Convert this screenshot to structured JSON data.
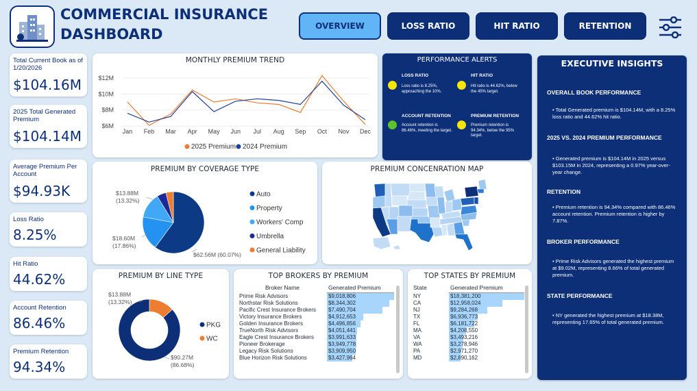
{
  "header": {
    "title_line1": "COMMERCIAL INSURANCE",
    "title_line2": "DASHBOARD",
    "tabs": [
      {
        "label": "OVERVIEW",
        "active": true
      },
      {
        "label": "LOSS RATIO",
        "active": false
      },
      {
        "label": "HIT RATIO",
        "active": false
      },
      {
        "label": "RETENTION",
        "active": false
      }
    ],
    "filter_icon": "sliders-icon"
  },
  "kpis": [
    {
      "label": "Total Current Book as of 1/20/2026",
      "value": "$104.16M"
    },
    {
      "label": "2025 Total Generated Premium",
      "value": "$104.14M"
    },
    {
      "label": "Average Premium Per Account",
      "value": "$94.93K"
    },
    {
      "label": "Loss Ratio",
      "value": "8.25%"
    },
    {
      "label": "Hit Ratio",
      "value": "44.62%"
    },
    {
      "label": "Account Retention",
      "value": "86.46%"
    },
    {
      "label": "Premium Retention",
      "value": "94.34%"
    }
  ],
  "monthly_trend": {
    "title": "MONTHLY PREMIUM TREND"
  },
  "coverage": {
    "title": "PREMIUM BY COVERAGE TYPE",
    "labels": {
      "a": "$13.88M",
      "a_pct": "(13.32%)",
      "b": "$18.60M",
      "b_pct": "(17.86%)",
      "c": "$62.56M (60.07%)"
    }
  },
  "map": {
    "title": "PREMIUM CONCENRATION MAP"
  },
  "line_type": {
    "title": "PREMIUM BY LINE TYPE",
    "labels": {
      "a": "$13.88M",
      "a_pct": "(13.32%)",
      "b": "$90.27M",
      "b_pct": "(86.68%)"
    }
  },
  "brokers": {
    "title": "TOP BROKERS BY PREMIUM",
    "col1": "Broker Name",
    "col2": "Generated Premium",
    "max": 9018806,
    "rows": [
      {
        "name": "Prime Risk Advisors",
        "value": "$9,018,806",
        "num": 9018806
      },
      {
        "name": "Northstar Risk Solutions",
        "value": "$8,344,302",
        "num": 8344302
      },
      {
        "name": "Pacific Crest Insurance Brokers",
        "value": "$7,490,704",
        "num": 7490704
      },
      {
        "name": "Victory Insurance Brokers",
        "value": "$4,912,653",
        "num": 4912653
      },
      {
        "name": "Golden Insurance Brokers",
        "value": "$4,496,856",
        "num": 4496856
      },
      {
        "name": "TrueNorth Risk Advisors",
        "value": "$4,051,441",
        "num": 4051441
      },
      {
        "name": "Eagle Crest Insurance Brokers",
        "value": "$3,991,633",
        "num": 3991633
      },
      {
        "name": "Pioneer Brokerage",
        "value": "$3,949,778",
        "num": 3949778
      },
      {
        "name": "Legacy Risk Solutions",
        "value": "$3,909,950",
        "num": 3909950
      },
      {
        "name": "Blue Horizon Risk Solutions",
        "value": "$3,427,964",
        "num": 3427964
      }
    ]
  },
  "states": {
    "title": "TOP STATES BY PREMIUM",
    "col1": "State",
    "col2": "Generated Premium",
    "max": 18381200,
    "rows": [
      {
        "name": "NY",
        "value": "$18,381,200",
        "num": 18381200
      },
      {
        "name": "CA",
        "value": "$12,958,024",
        "num": 12958024
      },
      {
        "name": "NJ",
        "value": "$9,284,268",
        "num": 9284268
      },
      {
        "name": "TX",
        "value": "$6,936,773",
        "num": 6936773
      },
      {
        "name": "FL",
        "value": "$6,181,722",
        "num": 6181722
      },
      {
        "name": "MA",
        "value": "$4,208,550",
        "num": 4208550
      },
      {
        "name": "VA",
        "value": "$3,493,216",
        "num": 3493216
      },
      {
        "name": "WA",
        "value": "$3,278,946",
        "num": 3278946
      },
      {
        "name": "PA",
        "value": "$2,971,270",
        "num": 2971270
      },
      {
        "name": "MD",
        "value": "$2,890,162",
        "num": 2890162
      }
    ]
  },
  "alerts": {
    "title": "PERFORMANCE ALERTS",
    "items": [
      {
        "title": "LOSS RATIO",
        "desc": "Loss ratio is 8.25%, approaching the 10%.",
        "status": "#f5e50a"
      },
      {
        "title": "HIT RATIO",
        "desc": "Hit ratio is 44.62%, below the 45% target.",
        "status": "#f5e50a"
      },
      {
        "title": "ACCOUNT RETENTION",
        "desc": "Account retention is 86.46%, meeting the target.",
        "status": "#5cc42a"
      },
      {
        "title": "PREMIUM RETENTION",
        "desc": "Premium retention is 94.34%, below the 95% target.",
        "status": "#f5e50a"
      }
    ]
  },
  "insights": {
    "title": "EXECUTIVE INSIGHTS",
    "sections": [
      {
        "heading": "OVERALL BOOK PERFORMANCE",
        "text": "• Total Generated premium is $104.14M, with a 8.25% loss ratio and 44.62% hit ratio."
      },
      {
        "heading": "2025 VS. 2024 PREMIUM PERFORMANCE",
        "text": "• Generated premium is $104.14M in 2025 versus $103.15M in 2024, representing a 0.97% year-over-year change."
      },
      {
        "heading": "RETENTION",
        "text": "• Premium retention is 94.34% compared with 86.46% account retention. Premium retention is higher by 7.87%."
      },
      {
        "heading": "BROKER PERFORMANCE",
        "text": "• Prime Risk Advisors generated the highest premium at $9.02M, representing 8.66% of total generated premium."
      },
      {
        "heading": "STATE PERFORMANCE",
        "text": "• NY generated the highest premium at $18.38M, representing 17.65% of total generated premium."
      }
    ]
  },
  "colors": {
    "navy": "#0c2f78",
    "series_2025": "#ed7d31",
    "series_2024": "#1f3f99",
    "auto": "#0c3a85",
    "property": "#2492f0",
    "workers_comp": "#41a8f6",
    "umbrella": "#1a2a98",
    "general_liability": "#ed7d31"
  },
  "chart_data": [
    {
      "type": "line",
      "title": "MONTHLY PREMIUM TREND",
      "x": [
        "Jan",
        "Feb",
        "Mar",
        "Apr",
        "May",
        "Jun",
        "Jul",
        "Aug",
        "Sep",
        "Oct",
        "Nov",
        "Dec"
      ],
      "ylim": [
        5.5,
        12.5
      ],
      "yticks": [
        "$6M",
        "$8M",
        "$10M",
        "$12M"
      ],
      "ytick_values": [
        6,
        8,
        10,
        12
      ],
      "series": [
        {
          "name": "2025 Premium",
          "color": "#ed7d31",
          "values": [
            9.0,
            6.1,
            7.5,
            10.5,
            9.0,
            9.4,
            8.9,
            8.7,
            7.7,
            12.3,
            9.1,
            6.2
          ]
        },
        {
          "name": "2024 Premium",
          "color": "#1f3f99",
          "values": [
            7.6,
            6.5,
            7.2,
            10.3,
            7.8,
            9.1,
            9.4,
            9.2,
            8.7,
            11.6,
            8.6,
            6.8
          ]
        }
      ]
    },
    {
      "type": "pie",
      "title": "PREMIUM BY COVERAGE TYPE",
      "categories": [
        "Auto",
        "Property",
        "Workers' Comp",
        "Umbrella",
        "General Liability"
      ],
      "values": [
        62.56,
        18.6,
        13.88,
        5.0,
        4.1
      ]
    },
    {
      "type": "pie",
      "title": "PREMIUM BY LINE TYPE",
      "categories": [
        "PKG",
        "WC"
      ],
      "values": [
        90.27,
        13.88
      ]
    }
  ]
}
